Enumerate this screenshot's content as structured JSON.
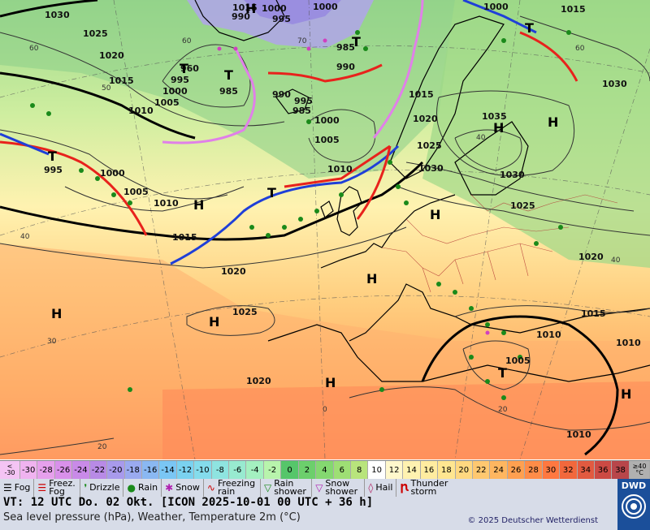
{
  "map": {
    "isobar_labels": [
      "1030",
      "1025",
      "1020",
      "1015",
      "1010",
      "1005",
      "1000",
      "995",
      "990",
      "985",
      "1000",
      "995",
      "1000",
      "985",
      "990",
      "995",
      "990",
      "985",
      "1015",
      "1020",
      "1025",
      "1030",
      "1035",
      "1000",
      "1005",
      "1010",
      "1015",
      "1020",
      "1025",
      "1030",
      "1020",
      "1015",
      "1010",
      "1005",
      "1010",
      "1010",
      "1020",
      "1025",
      "1030",
      "1015",
      "1010",
      "1005",
      "1000",
      "995",
      "960",
      "1000",
      "1015"
    ],
    "pressure_centers": [
      "H",
      "H",
      "H",
      "H",
      "H",
      "H",
      "H",
      "H",
      "H",
      "H",
      "T",
      "T",
      "T",
      "T",
      "T",
      "T",
      "T"
    ],
    "temp_labels": [
      "40",
      "30",
      "20",
      "60",
      "50",
      "60",
      "70",
      "0",
      "20",
      "40",
      "60",
      "40"
    ]
  },
  "colorbar": {
    "start": "<\n-30",
    "values": [
      "-30",
      "-28",
      "-26",
      "-24",
      "-22",
      "-20",
      "-18",
      "-16",
      "-14",
      "-12",
      "-10",
      "-8",
      "-6",
      "-4",
      "-2",
      "0",
      "2",
      "4",
      "6",
      "8",
      "10",
      "12",
      "14",
      "16",
      "18",
      "20",
      "22",
      "24",
      "26",
      "28",
      "30",
      "32",
      "34",
      "36",
      "38"
    ],
    "end": "≥40\n°C",
    "colors": [
      "#f0b3f0",
      "#e6a0ec",
      "#d990ea",
      "#c98ae8",
      "#b88ae6",
      "#a89aec",
      "#9aaaf0",
      "#8ab8f2",
      "#7ac6f4",
      "#7ad2f0",
      "#84dcec",
      "#8ee4e0",
      "#98ead0",
      "#a4f0c0",
      "#b8f4ac",
      "#56c66a",
      "#6ccf6c",
      "#84d870",
      "#9edf74",
      "#b8e47c",
      "#ffffff",
      "#fff8cc",
      "#fff2b0",
      "#ffeca0",
      "#ffe690",
      "#ffd880",
      "#ffc870",
      "#ffb660",
      "#ffa050",
      "#ff8c48",
      "#ff7840",
      "#f2683c",
      "#e25a40",
      "#cc4a44",
      "#b8464a"
    ]
  },
  "legend": {
    "items": [
      {
        "icon": "fog",
        "label": "Fog"
      },
      {
        "icon": "freezing-fog",
        "label": "Freez. Fog"
      },
      {
        "icon": "drizzle",
        "label": "Drizzle"
      },
      {
        "icon": "rain",
        "label": "Rain"
      },
      {
        "icon": "snow",
        "label": "Snow"
      },
      {
        "icon": "freezing-rain",
        "label": "Freezing rain"
      },
      {
        "icon": "rain-shower",
        "label": "Rain shower"
      },
      {
        "icon": "snow-shower",
        "label": "Snow shower"
      },
      {
        "icon": "hail",
        "label": "Hail"
      },
      {
        "icon": "thunderstorm",
        "label": "Thunder storm"
      }
    ]
  },
  "info": {
    "vt": "VT: 12 UTC Do.  02 Okt. [ICON 2025-10-01  00 UTC + 36 h]",
    "subtitle": "Sea level pressure (hPa), Weather, Temperature 2m (°C)",
    "copyright": "© 2025 Deutscher Wetterdienst",
    "logo": "DWD"
  }
}
